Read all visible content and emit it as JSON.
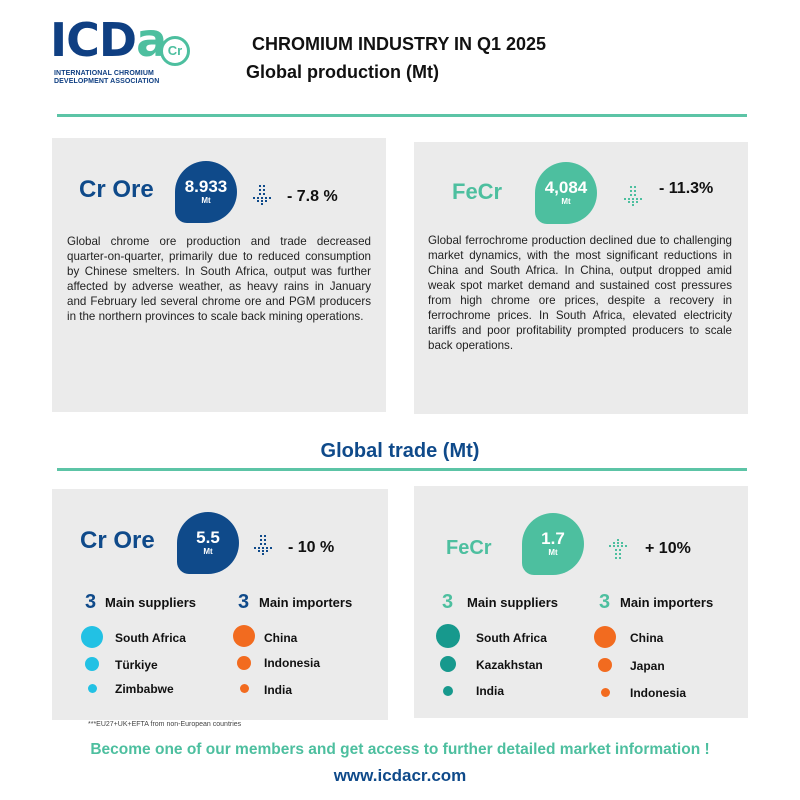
{
  "logo": {
    "word_main": "ICD",
    "word_accent": "a",
    "badge": "Cr",
    "subtitle": "INTERNATIONAL CHROMIUM DEVELOPMENT ASSOCIATION"
  },
  "header": {
    "title": "CHROMIUM INDUSTRY IN Q1 2025",
    "subtitle": "Global production (Mt)"
  },
  "production": {
    "cr_ore": {
      "title": "Cr Ore",
      "value": "8.933",
      "unit": "Mt",
      "change": "- 7.8 %",
      "trend": "down",
      "text": "Global chrome ore production and trade decreased quarter-on-quarter, primarily due to reduced consumption by Chinese smelters. In South Africa, output was further affected by adverse weather, as heavy rains in January and February led several chrome ore and PGM producers in the northern provinces to scale back mining operations."
    },
    "fecr": {
      "title": "FeCr",
      "value": "4,084",
      "unit": "Mt",
      "change": "- 11.3%",
      "trend": "down",
      "text": "Global ferrochrome production declined due to challenging market dynamics, with the most significant reductions in China and South Africa. In China, output dropped amid weak spot market demand and sustained cost pressures from high chrome ore prices, despite a recovery in ferrochrome prices. In South Africa, elevated electricity tariffs and poor profitability prompted producers to scale back operations."
    }
  },
  "trade": {
    "heading": "Global trade (Mt)",
    "cr_ore": {
      "title": "Cr Ore",
      "value": "5.5",
      "unit": "Mt",
      "change": "- 10 %",
      "trend": "down",
      "suppliers_count": "3",
      "suppliers_label": "Main suppliers",
      "importers_count": "3",
      "importers_label": "Main importers",
      "suppliers": [
        "South Africa",
        "Türkiye",
        "Zimbabwe"
      ],
      "importers": [
        "China",
        "Indonesia",
        "India"
      ]
    },
    "fecr": {
      "title": "FeCr",
      "value": "1.7",
      "unit": "Mt",
      "change": "+ 10%",
      "trend": "up",
      "suppliers_count": "3",
      "suppliers_label": "Main suppliers",
      "importers_count": "3",
      "importers_label": "Main importers",
      "suppliers": [
        "South Africa",
        "Kazakhstan",
        "India"
      ],
      "importers": [
        "China",
        "Japan",
        "Indonesia"
      ]
    }
  },
  "footnote": "***EU27+UK+EFTA from non-European countries",
  "cta": "Become one of our members and get access to further detailed market information !",
  "website": "www.icdacr.com",
  "colors": {
    "brand_blue": "#0f4a8a",
    "brand_green": "#4dbf9f",
    "supplier_dot_cr_ore": "#22c1e4",
    "supplier_dot_fecr": "#17998d",
    "importer_dot": "#f26b1f",
    "card_bg": "#ebebeb"
  }
}
